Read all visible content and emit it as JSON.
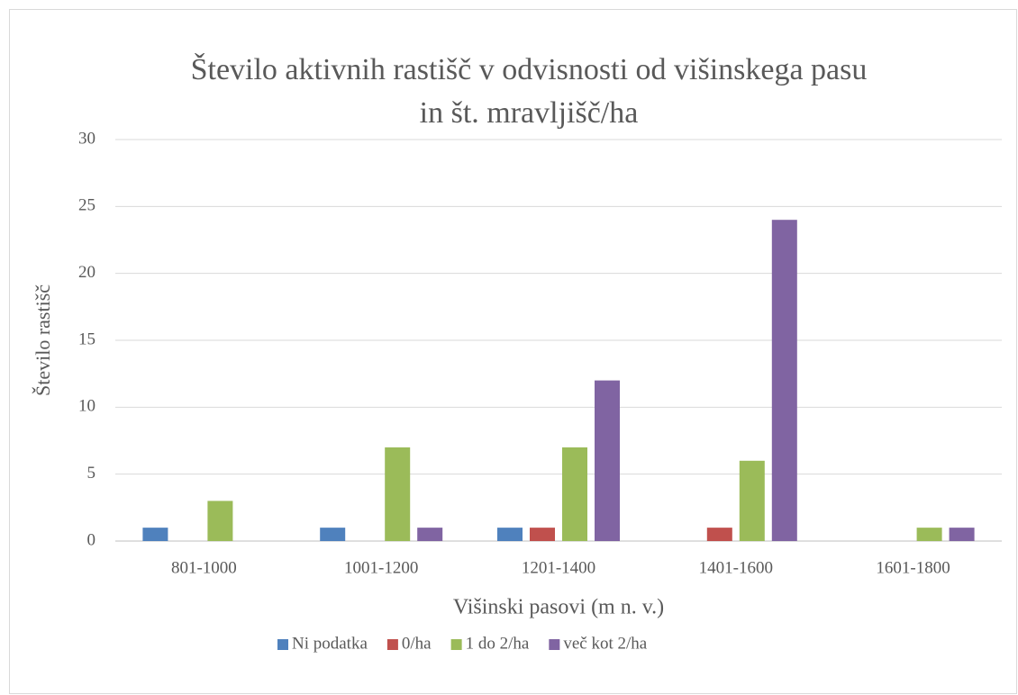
{
  "chart_data": {
    "type": "bar",
    "title": [
      "Število aktivnih rastišč v odvisnosti od višinskega pasu",
      "in št. mravljišč/ha"
    ],
    "x_label": "Višinski pasovi (m n. v.)",
    "y_label": "Število rastišč",
    "categories": [
      "801-1000",
      "1001-1200",
      "1201-1400",
      "1401-1600",
      "1601-1800"
    ],
    "series": [
      {
        "name": "Ni podatka",
        "color": "#4f81bd",
        "values": [
          1,
          1,
          1,
          0,
          0
        ]
      },
      {
        "name": "0/ha",
        "color": "#c0504d",
        "values": [
          0,
          0,
          1,
          1,
          0
        ]
      },
      {
        "name": "1 do 2/ha",
        "color": "#9bbb59",
        "values": [
          3,
          7,
          7,
          6,
          1
        ]
      },
      {
        "name": "več kot 2/ha",
        "color": "#8064a2",
        "values": [
          0,
          1,
          12,
          24,
          1
        ]
      }
    ],
    "ylim": [
      0,
      30
    ],
    "yticks": [
      0,
      5,
      10,
      15,
      20,
      25,
      30
    ],
    "grid": true,
    "legend": "bottom"
  }
}
